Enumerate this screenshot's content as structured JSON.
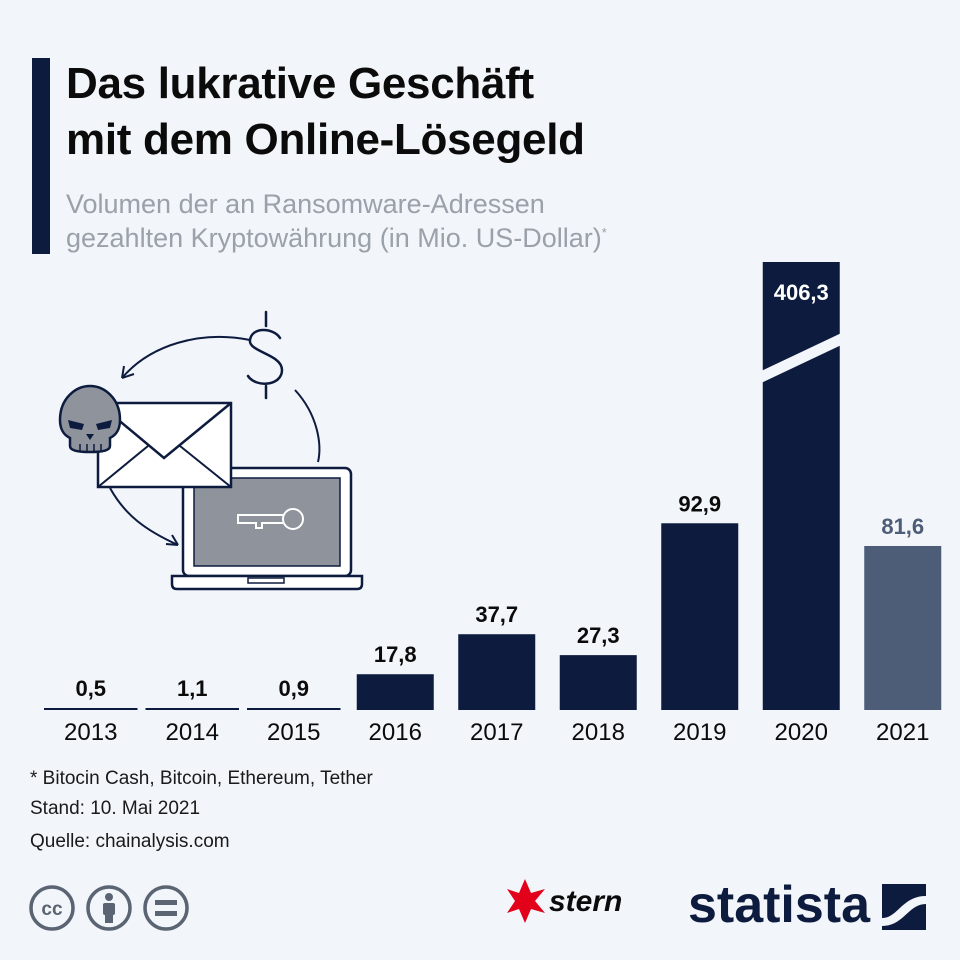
{
  "title": {
    "line1": "Das lukrative Geschäft",
    "line2": "mit dem Online-Lösegeld"
  },
  "subtitle": {
    "line1": "Volumen der an Ransomware-Adressen",
    "line2": "gezahlten Kryptowährung (in Mio. US-Dollar)",
    "marker": "*"
  },
  "chart_data": {
    "type": "bar",
    "title": "Das lukrative Geschäft mit dem Online-Lösegeld",
    "subtitle": "Volumen der an Ransomware-Adressen gezahlten Kryptowährung (in Mio. US-Dollar)",
    "unit": "Mio. US-Dollar",
    "categories": [
      "2013",
      "2014",
      "2015",
      "2016",
      "2017",
      "2018",
      "2019",
      "2020",
      "2021"
    ],
    "values": [
      0.5,
      1.1,
      0.9,
      17.8,
      37.7,
      27.3,
      92.9,
      406.3,
      81.6
    ],
    "labels": [
      "0,5",
      "1,1",
      "0,9",
      "17,8",
      "37,7",
      "27,3",
      "92,9",
      "406,3",
      "81,6"
    ],
    "axis_break": {
      "category": "2020",
      "note": "Bar truncated with a break marker"
    },
    "highlight": {
      "category": "2021",
      "color": "#4d5d77"
    },
    "ylim": [
      0,
      406.3
    ],
    "grid": false
  },
  "colors": {
    "bar": "#0d1b3e",
    "highlight": "#4d5d77",
    "accent": "#0d1b3e",
    "stern_red": "#e2001a"
  },
  "footer": {
    "note": "* Bitocin Cash, Bitcoin, Ethereum, Tether",
    "date": "Stand: 10. Mai 2021",
    "source": "Quelle: chainalysis.com"
  },
  "license_icons": [
    "cc-icon",
    "attribution-icon",
    "no-derivatives-icon"
  ],
  "illustration_icons": [
    "skull-icon",
    "envelope-icon",
    "dollar-icon",
    "laptop-icon",
    "key-icon",
    "cycle-arrow-icon"
  ],
  "brands": {
    "stern": "stern",
    "statista": "statista"
  }
}
